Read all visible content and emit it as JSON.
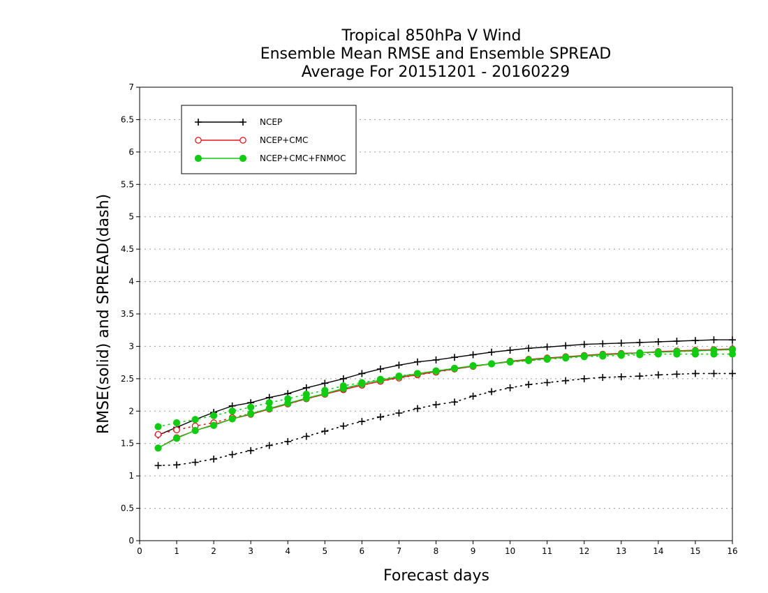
{
  "chart_data": {
    "type": "line",
    "title": [
      "Tropical 850hPa V Wind",
      "Ensemble Mean RMSE and Ensemble SPREAD",
      "Average For 20151201 - 20160229"
    ],
    "xlabel": "Forecast days",
    "ylabel": "RMSE(solid) and SPREAD(dash)",
    "xlim": [
      0,
      16
    ],
    "ylim": [
      0,
      7
    ],
    "xticks": [
      "0",
      "1",
      "2",
      "3",
      "4",
      "5",
      "6",
      "7",
      "8",
      "9",
      "10",
      "11",
      "12",
      "13",
      "14",
      "15",
      "16"
    ],
    "yticks": [
      "0",
      "0.5",
      "1",
      "1.5",
      "2",
      "2.5",
      "3",
      "3.5",
      "4",
      "4.5",
      "5",
      "5.5",
      "6",
      "6.5",
      "7"
    ],
    "grid": "horizontal-dotted",
    "legend_position": "top-left",
    "x": [
      0.5,
      1,
      1.5,
      2,
      2.5,
      3,
      3.5,
      4,
      4.5,
      5,
      5.5,
      6,
      6.5,
      7,
      7.5,
      8,
      8.5,
      9,
      9.5,
      10,
      10.5,
      11,
      11.5,
      12,
      12.5,
      13,
      13.5,
      14,
      14.5,
      15,
      15.5,
      16
    ],
    "series": [
      {
        "name": "NCEP",
        "metric": "RMSE",
        "color": "#000000",
        "marker": "plus",
        "dash": "solid",
        "values": [
          1.63,
          1.75,
          1.87,
          1.98,
          2.08,
          2.13,
          2.21,
          2.27,
          2.36,
          2.43,
          2.5,
          2.58,
          2.65,
          2.71,
          2.76,
          2.79,
          2.83,
          2.87,
          2.91,
          2.94,
          2.97,
          2.99,
          3.01,
          3.03,
          3.04,
          3.05,
          3.06,
          3.07,
          3.08,
          3.09,
          3.1,
          3.1
        ]
      },
      {
        "name": "NCEP",
        "metric": "SPREAD",
        "color": "#000000",
        "marker": "plus",
        "dash": "dotted",
        "values": [
          1.16,
          1.17,
          1.21,
          1.26,
          1.33,
          1.39,
          1.47,
          1.53,
          1.61,
          1.69,
          1.77,
          1.84,
          1.91,
          1.97,
          2.04,
          2.1,
          2.14,
          2.23,
          2.3,
          2.36,
          2.41,
          2.44,
          2.47,
          2.5,
          2.52,
          2.53,
          2.54,
          2.56,
          2.57,
          2.58,
          2.58,
          2.58
        ]
      },
      {
        "name": "NCEP+CMC",
        "metric": "RMSE",
        "color": "#e8141c",
        "marker": "open-circle",
        "dash": "solid",
        "values": [
          1.43,
          1.59,
          1.7,
          1.79,
          1.88,
          1.95,
          2.03,
          2.11,
          2.19,
          2.26,
          2.33,
          2.4,
          2.46,
          2.52,
          2.56,
          2.61,
          2.65,
          2.69,
          2.73,
          2.77,
          2.8,
          2.82,
          2.84,
          2.86,
          2.88,
          2.89,
          2.9,
          2.92,
          2.93,
          2.94,
          2.95,
          2.96
        ]
      },
      {
        "name": "NCEP+CMC",
        "metric": "SPREAD",
        "color": "#e8141c",
        "marker": "open-circle",
        "dash": "dotted",
        "values": [
          1.64,
          1.71,
          1.77,
          1.82,
          1.9,
          1.96,
          2.04,
          2.11,
          2.19,
          2.26,
          2.34,
          2.4,
          2.46,
          2.51,
          2.56,
          2.6,
          2.65,
          2.69,
          2.73,
          2.76,
          2.78,
          2.81,
          2.83,
          2.85,
          2.87,
          2.88,
          2.89,
          2.91,
          2.92,
          2.93,
          2.94,
          2.95
        ]
      },
      {
        "name": "NCEP+CMC+FNMOC",
        "metric": "RMSE",
        "color": "#11cc11",
        "marker": "filled-circle",
        "dash": "solid",
        "values": [
          1.43,
          1.58,
          1.7,
          1.78,
          1.88,
          1.96,
          2.04,
          2.12,
          2.2,
          2.27,
          2.35,
          2.42,
          2.48,
          2.53,
          2.58,
          2.62,
          2.66,
          2.7,
          2.73,
          2.76,
          2.79,
          2.81,
          2.83,
          2.85,
          2.87,
          2.88,
          2.9,
          2.91,
          2.92,
          2.93,
          2.94,
          2.95
        ]
      },
      {
        "name": "NCEP+CMC+FNMOC",
        "metric": "SPREAD",
        "color": "#11cc11",
        "marker": "filled-circle",
        "dash": "dotted",
        "values": [
          1.76,
          1.82,
          1.87,
          1.93,
          2.0,
          2.06,
          2.13,
          2.19,
          2.26,
          2.32,
          2.39,
          2.44,
          2.49,
          2.54,
          2.58,
          2.62,
          2.66,
          2.7,
          2.73,
          2.76,
          2.78,
          2.8,
          2.82,
          2.84,
          2.85,
          2.86,
          2.87,
          2.88,
          2.88,
          2.88,
          2.88,
          2.88
        ]
      }
    ],
    "legend": [
      {
        "label": "NCEP",
        "color": "#000000",
        "marker": "plus"
      },
      {
        "label": "NCEP+CMC",
        "color": "#e8141c",
        "marker": "open-circle"
      },
      {
        "label": "NCEP+CMC+FNMOC",
        "color": "#11cc11",
        "marker": "filled-circle"
      }
    ]
  }
}
